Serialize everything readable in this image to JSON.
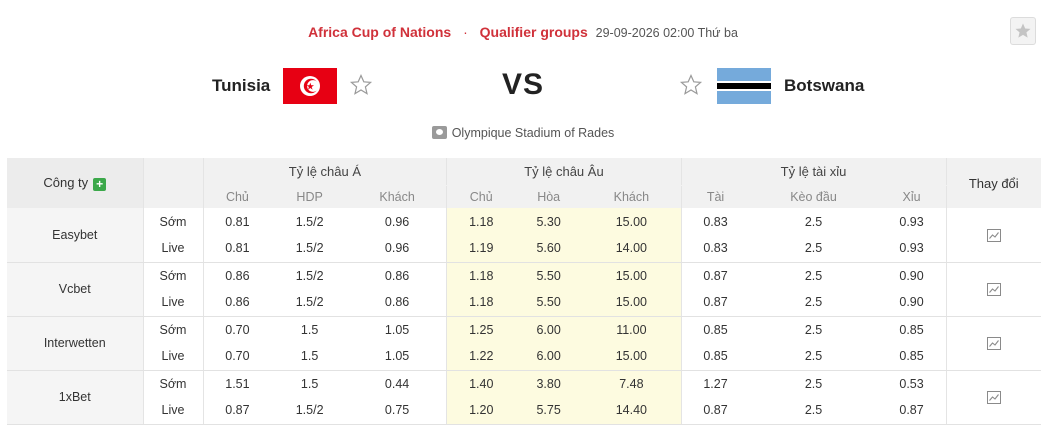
{
  "match": {
    "league": "Africa Cup of Nations",
    "separator": "·",
    "stage": "Qualifier groups",
    "datetime": "29-09-2026 02:00 Thứ ba",
    "home": "Tunisia",
    "away": "Botswana",
    "vs": "VS",
    "stadium": "Olympique Stadium of Rades"
  },
  "table": {
    "company_header": "Công ty",
    "change_header": "Thay đổi",
    "groups": [
      "Tỷ lệ châu Á",
      "Tỷ lệ châu Âu",
      "Tỷ lệ tài xỉu"
    ],
    "sub_headers": {
      "asian": [
        "Chủ",
        "HDP",
        "Khách"
      ],
      "euro": [
        "Chủ",
        "Hòa",
        "Khách"
      ],
      "ou": [
        "Tài",
        "Kèo đầu",
        "Xỉu"
      ]
    },
    "rows": [
      {
        "bookie": "Easybet",
        "early": {
          "label": "Sớm",
          "asian": [
            "0.81",
            "1.5/2",
            "0.96"
          ],
          "euro": [
            "1.18",
            "5.30",
            "15.00"
          ],
          "ou": [
            "0.83",
            "2.5",
            "0.93"
          ]
        },
        "live": {
          "label": "Live",
          "asian": [
            "0.81",
            "1.5/2",
            "0.96"
          ],
          "euro": [
            "1.19",
            "5.60",
            "14.00"
          ],
          "ou": [
            "0.83",
            "2.5",
            "0.93"
          ]
        }
      },
      {
        "bookie": "Vcbet",
        "early": {
          "label": "Sớm",
          "asian": [
            "0.86",
            "1.5/2",
            "0.86"
          ],
          "euro": [
            "1.18",
            "5.50",
            "15.00"
          ],
          "ou": [
            "0.87",
            "2.5",
            "0.90"
          ]
        },
        "live": {
          "label": "Live",
          "asian": [
            "0.86",
            "1.5/2",
            "0.86"
          ],
          "euro": [
            "1.18",
            "5.50",
            "15.00"
          ],
          "ou": [
            "0.87",
            "2.5",
            "0.90"
          ]
        }
      },
      {
        "bookie": "Interwetten",
        "early": {
          "label": "Sớm",
          "asian": [
            "0.70",
            "1.5",
            "1.05"
          ],
          "euro": [
            "1.25",
            "6.00",
            "11.00"
          ],
          "ou": [
            "0.85",
            "2.5",
            "0.85"
          ]
        },
        "live": {
          "label": "Live",
          "asian": [
            "0.70",
            "1.5",
            "1.05"
          ],
          "euro": [
            "1.22",
            "6.00",
            "15.00"
          ],
          "ou": [
            "0.85",
            "2.5",
            "0.85"
          ]
        }
      },
      {
        "bookie": "1xBet",
        "early": {
          "label": "Sớm",
          "asian": [
            "1.51",
            "1.5",
            "0.44"
          ],
          "euro": [
            "1.40",
            "3.80",
            "7.48"
          ],
          "ou": [
            "1.27",
            "2.5",
            "0.53"
          ]
        },
        "live": {
          "label": "Live",
          "asian": [
            "0.87",
            "1.5/2",
            "0.75"
          ],
          "euro": [
            "1.20",
            "5.75",
            "14.40"
          ],
          "ou": [
            "0.87",
            "2.5",
            "0.87"
          ]
        }
      }
    ]
  },
  "icons": {
    "favorite": "star-icon",
    "home_flag": "tunisia-flag-icon",
    "away_flag": "botswana-flag-icon",
    "stadium": "stadium-icon",
    "add": "plus-icon",
    "change": "line-chart-icon"
  },
  "colors": {
    "accent_red": "#d0313a",
    "euro_highlight": "#fdfbe0",
    "add_green": "#3ba84a"
  }
}
